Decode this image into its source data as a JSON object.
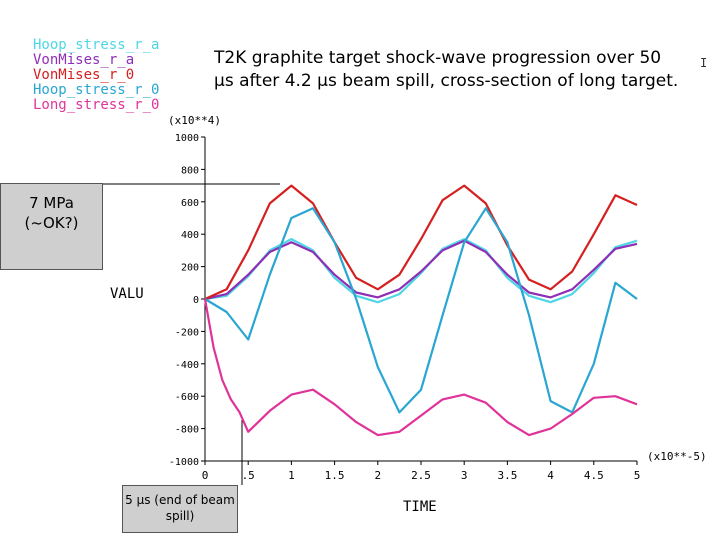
{
  "title": "T2K graphite target shock-wave progression over 50 µs after 4.2 µs beam spill, cross-section of long target.",
  "edge_label": "I",
  "callouts": {
    "mpa": "7 MPa (~OK?)",
    "spill": "5 µs (end of beam spill)"
  },
  "chart_data": {
    "type": "line",
    "xlabel": "TIME",
    "ylabel": "VALU",
    "x_multiplier": "(x10**-5)",
    "y_multiplier": "(x10**4)",
    "xlim": [
      0,
      5
    ],
    "ylim": [
      -1000,
      1000
    ],
    "x_ticks": [
      "0",
      ".5",
      "1",
      "1.5",
      "2",
      "2.5",
      "3",
      "3.5",
      "4",
      "4.5",
      "5"
    ],
    "y_ticks": [
      "1000",
      "800",
      "600",
      "400",
      "200",
      "0",
      "-200",
      "-400",
      "-600",
      "-800",
      "-1000"
    ],
    "grid": false,
    "legend_position": "top-left, outside plot",
    "series": [
      {
        "name": "Hoop_stress_r_a",
        "color": "#4fd6e6",
        "x": [
          0,
          0.25,
          0.5,
          0.75,
          1.0,
          1.25,
          1.5,
          1.75,
          2.0,
          2.25,
          2.5,
          2.75,
          3.0,
          3.25,
          3.5,
          3.75,
          4.0,
          4.25,
          4.5,
          4.75,
          5.0
        ],
        "y": [
          0,
          20,
          140,
          300,
          370,
          300,
          130,
          20,
          -20,
          30,
          160,
          310,
          370,
          300,
          130,
          20,
          -20,
          30,
          160,
          320,
          360
        ]
      },
      {
        "name": "VonMises_r_a",
        "color": "#8e2fb6",
        "x": [
          0,
          0.25,
          0.5,
          0.75,
          1.0,
          1.25,
          1.5,
          1.75,
          2.0,
          2.25,
          2.5,
          2.75,
          3.0,
          3.25,
          3.5,
          3.75,
          4.0,
          4.25,
          4.5,
          4.75,
          5.0
        ],
        "y": [
          0,
          30,
          150,
          290,
          350,
          290,
          150,
          40,
          10,
          60,
          170,
          300,
          360,
          290,
          150,
          40,
          10,
          60,
          180,
          310,
          340
        ]
      },
      {
        "name": "VonMises_r_0",
        "color": "#d42020",
        "x": [
          0,
          0.25,
          0.5,
          0.75,
          1.0,
          1.25,
          1.5,
          1.75,
          2.0,
          2.25,
          2.5,
          2.75,
          3.0,
          3.25,
          3.5,
          3.75,
          4.0,
          4.25,
          4.5,
          4.75,
          5.0
        ],
        "y": [
          0,
          60,
          300,
          590,
          700,
          590,
          350,
          130,
          60,
          150,
          370,
          610,
          700,
          590,
          330,
          120,
          60,
          170,
          400,
          640,
          580
        ]
      },
      {
        "name": "Hoop_stress_r_0",
        "color": "#2aa6d2",
        "x": [
          0,
          0.25,
          0.5,
          0.75,
          1.0,
          1.25,
          1.5,
          1.75,
          2.0,
          2.25,
          2.5,
          2.75,
          3.0,
          3.25,
          3.5,
          3.75,
          4.0,
          4.25,
          4.5,
          4.75,
          5.0
        ],
        "y": [
          0,
          -80,
          -250,
          150,
          500,
          560,
          350,
          0,
          -420,
          -700,
          -560,
          -100,
          350,
          560,
          350,
          -100,
          -630,
          -700,
          -400,
          100,
          0
        ]
      },
      {
        "name": "Long_stress_r_0",
        "color": "#e0339a",
        "x": [
          0,
          0.1,
          0.2,
          0.3,
          0.4,
          0.5,
          0.75,
          1.0,
          1.25,
          1.5,
          1.75,
          2.0,
          2.25,
          2.5,
          2.75,
          3.0,
          3.25,
          3.5,
          3.75,
          4.0,
          4.25,
          4.5,
          4.75,
          5.0
        ],
        "y": [
          0,
          -300,
          -500,
          -620,
          -700,
          -820,
          -690,
          -590,
          -560,
          -650,
          -760,
          -840,
          -820,
          -720,
          -620,
          -590,
          -640,
          -760,
          -840,
          -800,
          -710,
          -610,
          -600,
          -650
        ]
      }
    ]
  }
}
